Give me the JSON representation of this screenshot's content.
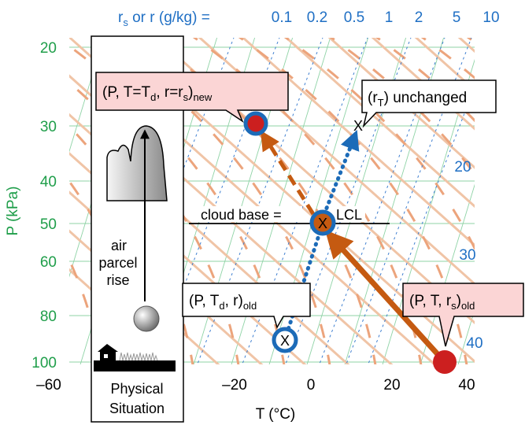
{
  "colors": {
    "green_axis": "#1f9e4a",
    "blue_ticks": "#1f6fc4",
    "isotherm_green": "#8fd3a6",
    "dry_adiabat": "#f0c4a6",
    "moist_adiabat": "#eca47c",
    "mixing_ratio_blue": "#3f7fd0",
    "arrow_orange": "#c55a11",
    "dot_red": "#cc1f1f",
    "ring_blue": "#1c6bb8",
    "label_pink": "#fbd5d5"
  },
  "top_header": {
    "prefix_r": "r",
    "prefix_sub": "s",
    "prefix_rest": " or  r (g/kg) =",
    "values": [
      "0.1",
      "0.2",
      "0.5",
      "1",
      "2",
      "5",
      "10"
    ]
  },
  "right_labels": [
    "20",
    "30",
    "40"
  ],
  "y_axis": {
    "label": "P (kPa)",
    "ticks": [
      "20",
      "30",
      "40",
      "50",
      "60",
      "80",
      "100"
    ]
  },
  "x_axis": {
    "label": "T (°C)",
    "ticks": [
      "–60",
      "–20",
      "0",
      "20",
      "40"
    ]
  },
  "physical_panel": {
    "air": "air",
    "parcel": "parcel",
    "rise": "rise",
    "footer_line1": "Physical",
    "footer_line2": "Situation"
  },
  "callouts": {
    "new_state": {
      "main": "(P, T=T",
      "sub1": "d",
      "mid": ", r=r",
      "sub2": "s",
      "close": ")",
      "sub3": "new"
    },
    "unchanged": {
      "open": "(r",
      "sub": "T",
      "rest": ") unchanged"
    },
    "cloud_base_left": "cloud base =",
    "cloud_base_right": "LCL",
    "old_dew": {
      "main": "(P, T",
      "sub1": "d",
      "rest": ", r)",
      "sub2": "old"
    },
    "old_state": {
      "main": "(P, T, r",
      "sub1": "s",
      "rest": ")",
      "sub2": "old"
    },
    "marker_x": "X"
  }
}
